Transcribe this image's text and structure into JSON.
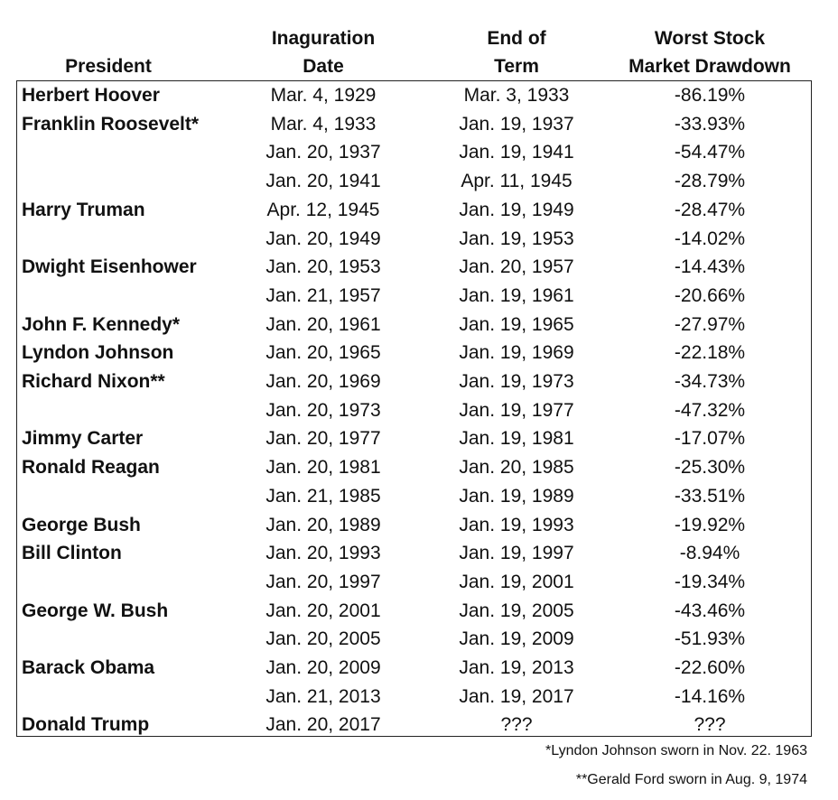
{
  "table": {
    "headers": [
      [
        "President"
      ],
      [
        "Inaguration",
        "Date"
      ],
      [
        "End of",
        "Term"
      ],
      [
        "Worst Stock",
        "Market Drawdown"
      ]
    ],
    "rows": [
      [
        "Herbert Hoover",
        "Mar. 4, 1929",
        "Mar. 3, 1933",
        "-86.19%"
      ],
      [
        "Franklin Roosevelt*",
        "Mar. 4, 1933",
        "Jan. 19, 1937",
        "-33.93%"
      ],
      [
        null,
        "Jan. 20, 1937",
        "Jan. 19, 1941",
        "-54.47%"
      ],
      [
        null,
        "Jan. 20, 1941",
        "Apr. 11, 1945",
        "-28.79%"
      ],
      [
        "Harry Truman",
        "Apr. 12, 1945",
        "Jan. 19, 1949",
        "-28.47%"
      ],
      [
        null,
        "Jan. 20, 1949",
        "Jan. 19, 1953",
        "-14.02%"
      ],
      [
        "Dwight Eisenhower",
        "Jan. 20, 1953",
        "Jan. 20, 1957",
        "-14.43%"
      ],
      [
        null,
        "Jan. 21, 1957",
        "Jan. 19, 1961",
        "-20.66%"
      ],
      [
        "John F. Kennedy*",
        "Jan. 20, 1961",
        "Jan. 19, 1965",
        "-27.97%"
      ],
      [
        "Lyndon Johnson",
        "Jan. 20, 1965",
        "Jan. 19, 1969",
        "-22.18%"
      ],
      [
        "Richard Nixon**",
        "Jan. 20, 1969",
        "Jan. 19, 1973",
        "-34.73%"
      ],
      [
        null,
        "Jan. 20, 1973",
        "Jan. 19, 1977",
        "-47.32%"
      ],
      [
        "Jimmy Carter",
        "Jan. 20, 1977",
        "Jan. 19, 1981",
        "-17.07%"
      ],
      [
        "Ronald Reagan",
        "Jan. 20, 1981",
        "Jan. 20, 1985",
        "-25.30%"
      ],
      [
        null,
        "Jan. 21, 1985",
        "Jan. 19, 1989",
        "-33.51%"
      ],
      [
        "George Bush",
        "Jan. 20, 1989",
        "Jan. 19, 1993",
        "-19.92%"
      ],
      [
        "Bill Clinton",
        "Jan. 20, 1993",
        "Jan. 19, 1997",
        "-8.94%"
      ],
      [
        null,
        "Jan. 20, 1997",
        "Jan. 19, 2001",
        "-19.34%"
      ],
      [
        "George W. Bush",
        "Jan. 20, 2001",
        "Jan. 19, 2005",
        "-43.46%"
      ],
      [
        null,
        "Jan. 20, 2005",
        "Jan. 19, 2009",
        "-51.93%"
      ],
      [
        "Barack Obama",
        "Jan. 20, 2009",
        "Jan. 19, 2013",
        "-22.60%"
      ],
      [
        null,
        "Jan. 21, 2013",
        "Jan. 19, 2017",
        "-14.16%"
      ],
      [
        "Donald Trump",
        "Jan. 20, 2017",
        "???",
        "???"
      ]
    ],
    "footnotes": [
      "*Lyndon Johnson sworn in Nov. 22. 1963",
      "**Gerald Ford sworn in Aug. 9, 1974"
    ]
  }
}
